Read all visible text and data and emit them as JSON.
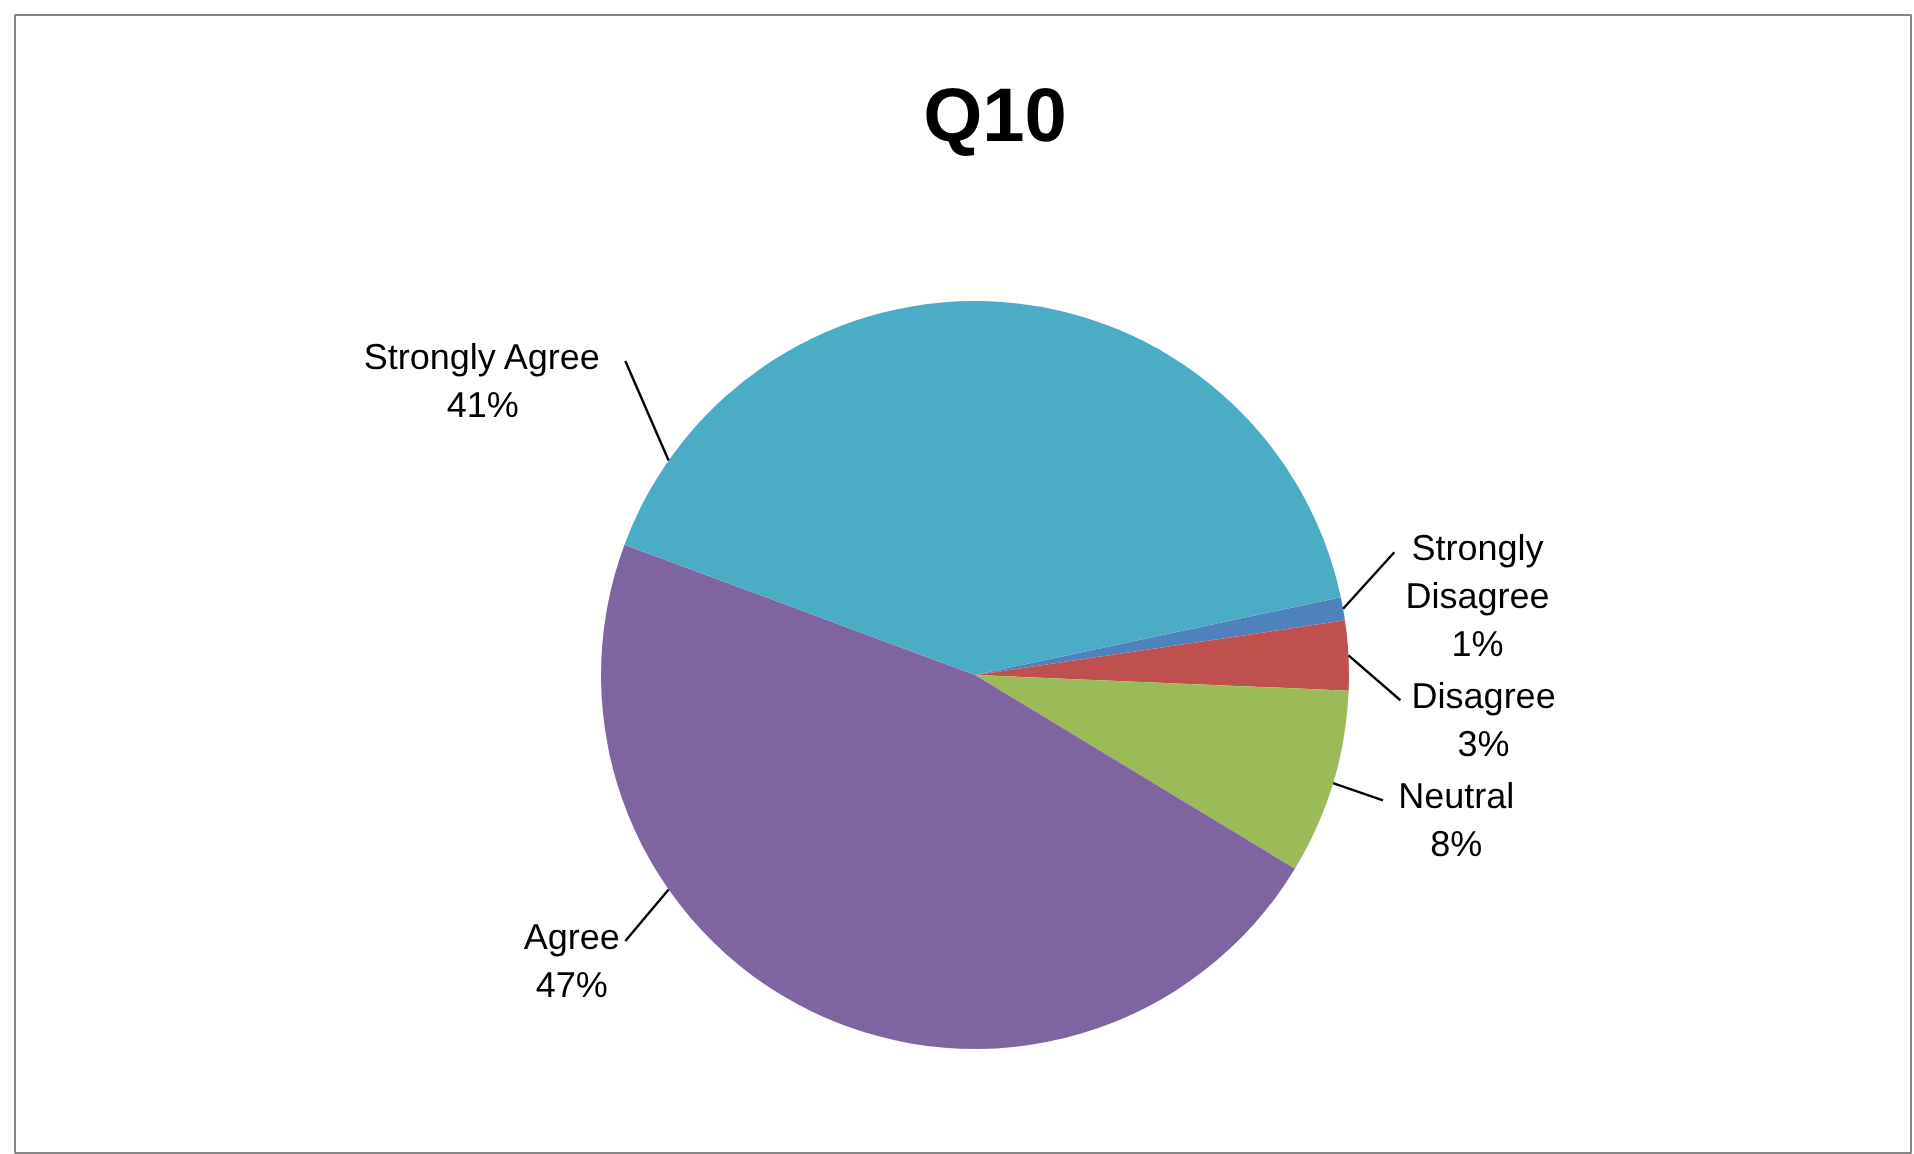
{
  "chart_data": {
    "type": "pie",
    "title": "Q10",
    "categories": [
      "Strongly Disagree",
      "Disagree",
      "Neutral",
      "Agree",
      "Strongly Agree"
    ],
    "values": [
      1,
      3,
      8,
      47,
      41
    ],
    "value_labels": [
      "1%",
      "3%",
      "8%",
      "47%",
      "41%"
    ],
    "colors": [
      "#4f81bd",
      "#c0504d",
      "#9bbb59",
      "#8064a2",
      "#4bacc6"
    ]
  }
}
